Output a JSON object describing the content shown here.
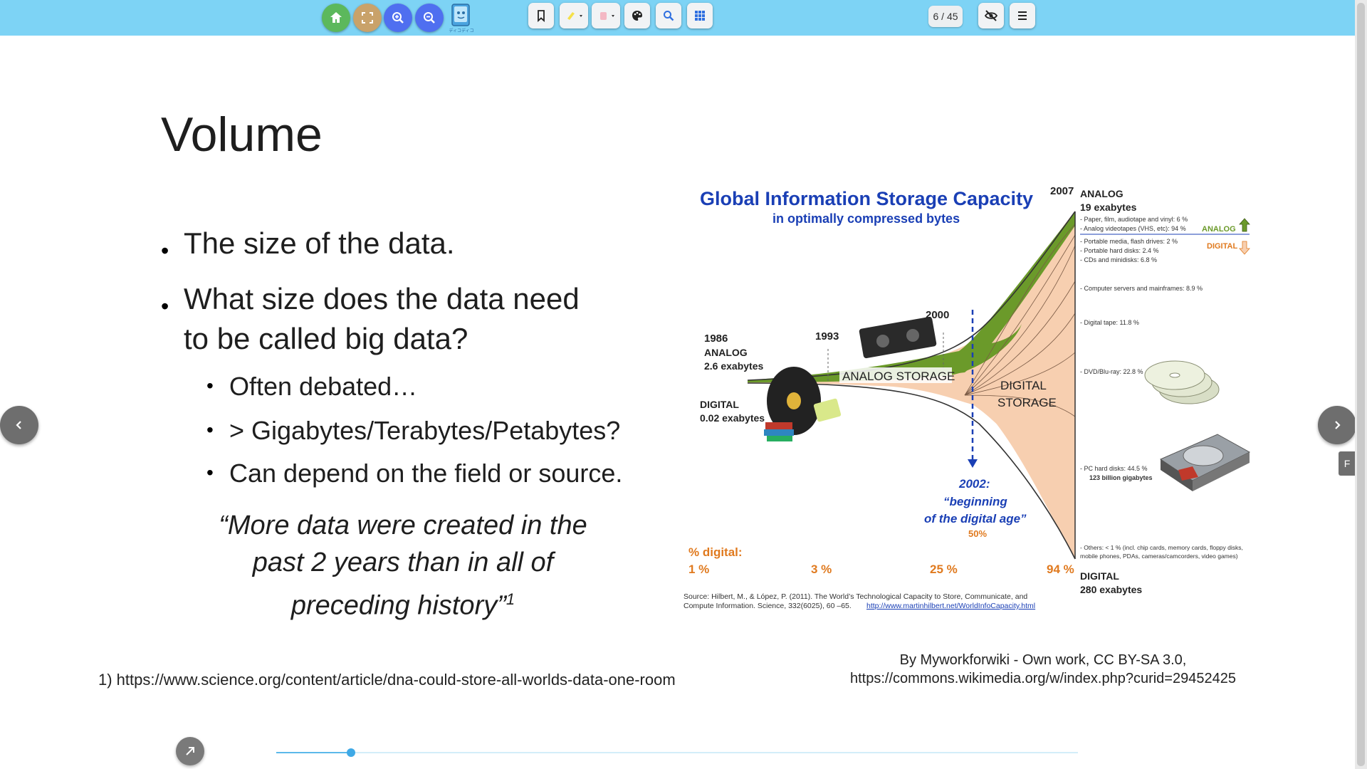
{
  "toolbar": {
    "buttons": [
      {
        "name": "home",
        "icon": "home-icon",
        "color": "#5cb85c"
      },
      {
        "name": "fullscreen",
        "icon": "fullscreen-icon",
        "color": "#c9a26a"
      },
      {
        "name": "zoom-in",
        "icon": "zoom-in-icon",
        "color": "#4f6ff0"
      },
      {
        "name": "zoom-out",
        "icon": "zoom-out-icon",
        "color": "#4f6ff0"
      }
    ],
    "logo_text": "ディコディコ",
    "page_counter": "6 / 45"
  },
  "slide": {
    "title": "Volume",
    "bullets": [
      {
        "level": 1,
        "text": "The size of the data."
      },
      {
        "level": 1,
        "lines": [
          "What size does the data need",
          "to be called big data?"
        ]
      },
      {
        "level": 2,
        "text": "Often debated…"
      },
      {
        "level": 2,
        "text": "> Gigabytes/Terabytes/Petabytes?"
      },
      {
        "level": 2,
        "text": "Can depend on the field or source."
      }
    ],
    "quote": {
      "lines": [
        "“More data were created in the",
        "past 2 years than in all of",
        "preceding history”"
      ],
      "sup": "1"
    },
    "reference": "1) https://www.science.org/content/article/dna-could-store-all-worlds-data-one-room",
    "credit": [
      "By Myworkforwiki - Own work, CC BY-SA 3.0,",
      "https://commons.wikimedia.org/w/index.php?curid=29452425"
    ]
  },
  "infographic": {
    "title": "Global Information Storage Capacity",
    "subtitle": "in optimally compressed bytes",
    "years": {
      "y1986": "1986",
      "y1993": "1993",
      "y2000": "2000",
      "y2007": "2007"
    },
    "analog_1986": [
      "ANALOG",
      "2.6 exabytes"
    ],
    "digital_1986": [
      "DIGITAL",
      "0.02 exabytes"
    ],
    "analog_storage": "ANALOG STORAGE",
    "digital_storage": [
      "DIGITAL",
      "STORAGE"
    ],
    "digital_age": [
      "2002:",
      "“beginning",
      "of the digital age”",
      "50%"
    ],
    "pct_label": "% digital:",
    "pct_values": [
      "1 %",
      "3 %",
      "25 %",
      "94 %"
    ],
    "analog_2007": [
      "ANALOG",
      "19 exabytes"
    ],
    "analog_items": [
      "- Paper, film, audiotape and vinyl: 6 %",
      "- Analog videotapes (VHS, etc): 94 %"
    ],
    "legend_analog": "ANALOG",
    "legend_digital": "DIGITAL",
    "digital_items": [
      "- Portable media, flash drives: 2 %",
      "- Portable hard disks: 2.4 %",
      "- CDs and minidisks: 6.8 %",
      "- Computer servers and mainframes: 8.9 %",
      "- Digital tape: 11.8 %",
      "- DVD/Blu-ray: 22.8 %",
      "- PC hard disks: 44.5 %",
      "123 billion gigabytes"
    ],
    "others": [
      "- Others: < 1 % (incl. chip cards, memory cards, floppy disks,",
      "mobile phones, PDAs, cameras/camcorders, video games)"
    ],
    "digital_2007": [
      "DIGITAL",
      "280 exabytes"
    ],
    "source": [
      "Source: Hilbert, M., & López, P. (2011). The World’s Technological Capacity to Store, Communicate, and",
      "Compute Information. Science, 332(6025), 60 –65."
    ],
    "source_link": "http://www.martinhilbert.net/WorldInfoCapacity.html",
    "colors": {
      "analog": "#6b9a2a",
      "digital": "#f7cfb0",
      "title": "#1a3fb5"
    }
  },
  "navigation": {
    "prev_icon": "chevron-left-icon",
    "next_icon": "chevron-right-icon",
    "side_tab": "F",
    "share_icon": "share-arrow-icon",
    "progress": 0.093
  }
}
